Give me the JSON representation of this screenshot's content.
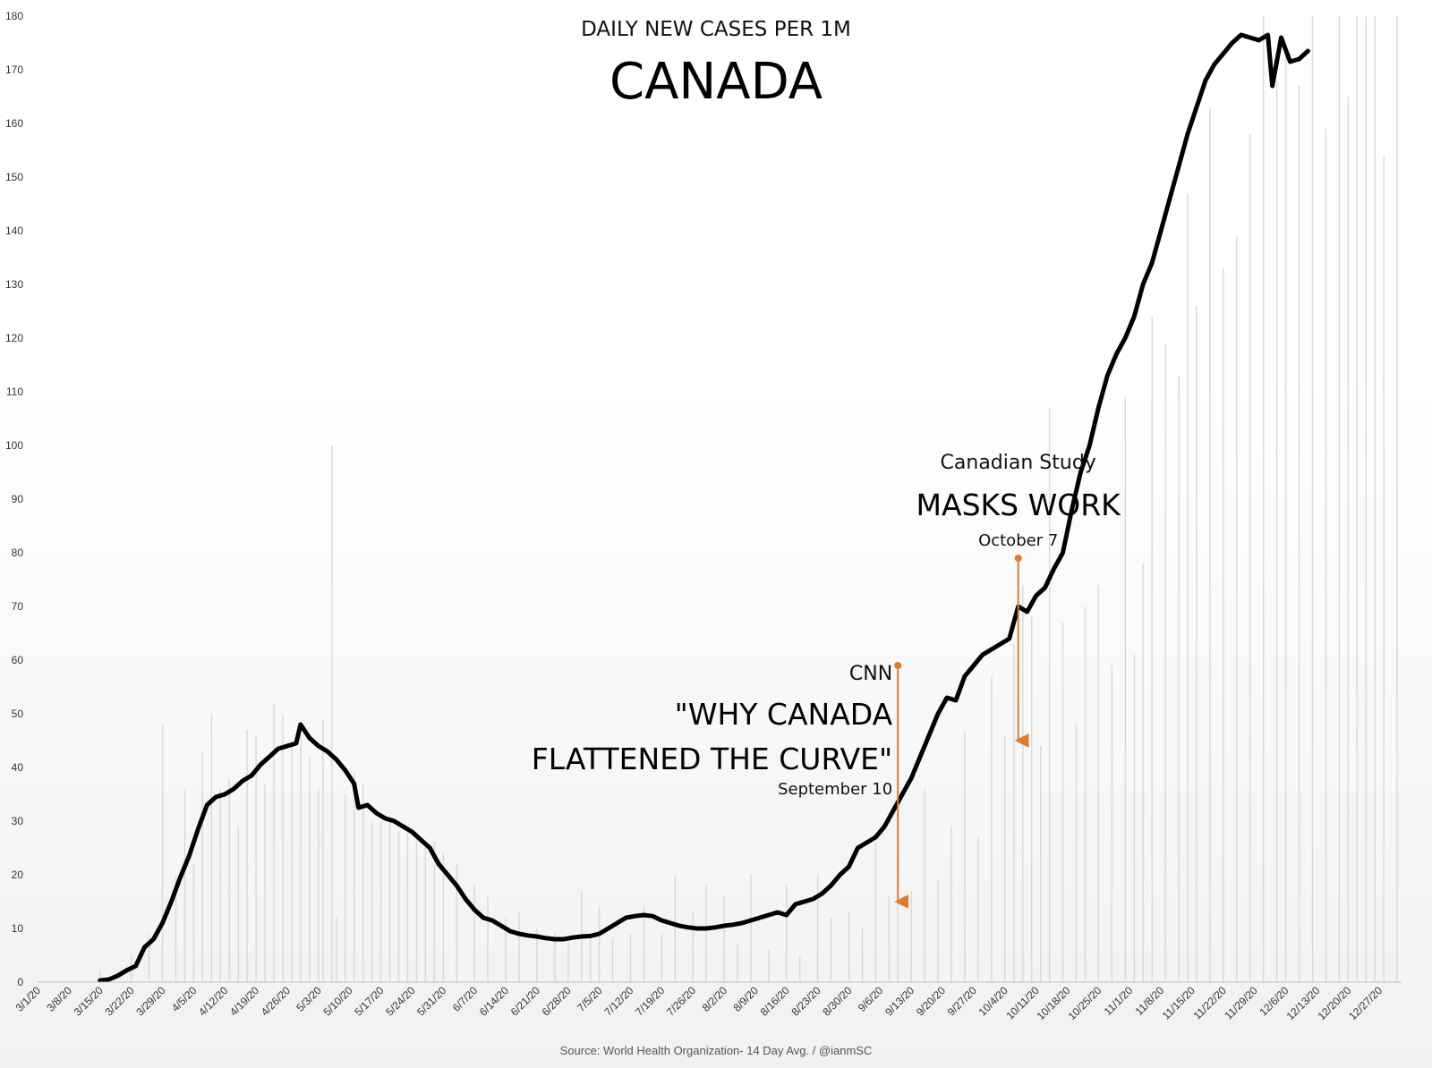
{
  "chart_data": {
    "type": "bar",
    "title": "CANADA",
    "subtitle": "DAILY NEW CASES PER 1M",
    "source": "Source: World Health Organization- 14 Day Avg. / @ianmSC",
    "ylim": [
      0,
      180
    ],
    "y_ticks": [
      "0",
      "10",
      "20",
      "30",
      "40",
      "50",
      "60",
      "70",
      "80",
      "90",
      "100",
      "110",
      "120",
      "130",
      "140",
      "150",
      "160",
      "170",
      "180"
    ],
    "x_tick_labels": [
      "3/1/20",
      "3/8/20",
      "3/15/20",
      "3/22/20",
      "3/29/20",
      "4/5/20",
      "4/12/20",
      "4/19/20",
      "4/26/20",
      "5/3/20",
      "5/10/20",
      "5/17/20",
      "5/24/20",
      "5/31/20",
      "6/7/20",
      "6/14/20",
      "6/21/20",
      "6/28/20",
      "7/5/20",
      "7/12/20",
      "7/19/20",
      "7/26/20",
      "8/2/20",
      "8/9/20",
      "8/16/20",
      "8/23/20",
      "8/30/20",
      "9/6/20",
      "9/13/20",
      "9/20/20",
      "9/27/20",
      "10/4/20",
      "10/11/20",
      "10/18/20",
      "10/25/20",
      "11/1/20",
      "11/8/20",
      "11/15/20",
      "11/22/20",
      "11/29/20",
      "12/6/20",
      "12/13/20",
      "12/20/20",
      "12/27/20"
    ],
    "x_range": [
      "3/1/20",
      "1/1/21"
    ],
    "grid": false,
    "legend": "none",
    "series": [
      {
        "type": "bar",
        "color": "#d9d9d9",
        "points": [
          [
            "3/15/20",
            2
          ],
          [
            "3/22/20",
            5
          ],
          [
            "3/26/20",
            9
          ],
          [
            "3/29/20",
            48
          ],
          [
            "4/1/20",
            20
          ],
          [
            "4/3/20",
            36
          ],
          [
            "4/5/20",
            22
          ],
          [
            "4/7/20",
            43
          ],
          [
            "4/9/20",
            50
          ],
          [
            "4/11/20",
            36
          ],
          [
            "4/13/20",
            38
          ],
          [
            "4/15/20",
            29
          ],
          [
            "4/17/20",
            47
          ],
          [
            "4/19/20",
            46
          ],
          [
            "4/21/20",
            37
          ],
          [
            "4/23/20",
            52
          ],
          [
            "4/25/20",
            50
          ],
          [
            "4/27/20",
            44
          ],
          [
            "4/29/20",
            46
          ],
          [
            "5/1/20",
            42
          ],
          [
            "5/3/20",
            36
          ],
          [
            "5/4/20",
            49
          ],
          [
            "5/6/20",
            100
          ],
          [
            "5/7/20",
            12
          ],
          [
            "5/9/20",
            35
          ],
          [
            "5/11/20",
            39
          ],
          [
            "5/13/20",
            37
          ],
          [
            "5/15/20",
            30
          ],
          [
            "5/17/20",
            30
          ],
          [
            "5/19/20",
            31
          ],
          [
            "5/21/20",
            28
          ],
          [
            "5/23/20",
            29
          ],
          [
            "5/25/20",
            27
          ],
          [
            "5/27/20",
            25
          ],
          [
            "5/29/20",
            26
          ],
          [
            "5/31/20",
            24
          ],
          [
            "6/3/20",
            22
          ],
          [
            "6/7/20",
            18
          ],
          [
            "6/10/20",
            16
          ],
          [
            "6/14/20",
            12
          ],
          [
            "6/17/20",
            13
          ],
          [
            "6/21/20",
            10
          ],
          [
            "6/25/20",
            9
          ],
          [
            "6/28/20",
            8
          ],
          [
            "7/1/20",
            17
          ],
          [
            "7/3/20",
            9
          ],
          [
            "7/5/20",
            14
          ],
          [
            "7/8/20",
            8
          ],
          [
            "7/12/20",
            9
          ],
          [
            "7/15/20",
            14
          ],
          [
            "7/19/20",
            9
          ],
          [
            "7/22/20",
            20
          ],
          [
            "7/26/20",
            13
          ],
          [
            "7/29/20",
            18
          ],
          [
            "8/2/20",
            16
          ],
          [
            "8/5/20",
            7
          ],
          [
            "8/8/20",
            20
          ],
          [
            "8/12/20",
            6
          ],
          [
            "8/16/20",
            18
          ],
          [
            "8/19/20",
            5
          ],
          [
            "8/23/20",
            20
          ],
          [
            "8/26/20",
            12
          ],
          [
            "8/30/20",
            13
          ],
          [
            "9/2/20",
            10
          ],
          [
            "9/5/20",
            26
          ],
          [
            "9/8/20",
            16
          ],
          [
            "9/10/20",
            42
          ],
          [
            "9/13/20",
            17
          ],
          [
            "9/16/20",
            36
          ],
          [
            "9/19/20",
            19
          ],
          [
            "9/22/20",
            29
          ],
          [
            "9/25/20",
            47
          ],
          [
            "9/28/20",
            27
          ],
          [
            "10/1/20",
            57
          ],
          [
            "10/4/20",
            46
          ],
          [
            "10/6/20",
            63
          ],
          [
            "10/8/20",
            74
          ],
          [
            "10/10/20",
            68
          ],
          [
            "10/12/20",
            44
          ],
          [
            "10/14/20",
            107
          ],
          [
            "10/17/20",
            67
          ],
          [
            "10/20/20",
            48
          ],
          [
            "10/22/20",
            70
          ],
          [
            "10/25/20",
            74
          ],
          [
            "10/28/20",
            59
          ],
          [
            "10/31/20",
            109
          ],
          [
            "11/2/20",
            61
          ],
          [
            "11/4/20",
            78
          ],
          [
            "11/6/20",
            124
          ],
          [
            "11/9/20",
            119
          ],
          [
            "11/12/20",
            113
          ],
          [
            "11/14/20",
            147
          ],
          [
            "11/16/20",
            126
          ],
          [
            "11/19/20",
            163
          ],
          [
            "11/22/20",
            133
          ],
          [
            "11/25/20",
            139
          ],
          [
            "11/28/20",
            158
          ],
          [
            "12/1/20",
            180
          ],
          [
            "12/4/20",
            168
          ],
          [
            "12/6/20",
            173
          ],
          [
            "12/9/20",
            167
          ],
          [
            "12/12/20",
            180
          ],
          [
            "12/15/20",
            159
          ],
          [
            "12/18/20",
            180
          ],
          [
            "12/20/20",
            165
          ],
          [
            "12/22/20",
            180
          ],
          [
            "12/24/20",
            180
          ],
          [
            "12/26/20",
            180
          ],
          [
            "12/28/20",
            154
          ],
          [
            "12/31/20",
            180
          ]
        ]
      },
      {
        "type": "line",
        "color": "#000000",
        "points": [
          [
            "3/15/20",
            0.3
          ],
          [
            "3/17/20",
            0.5
          ],
          [
            "3/19/20",
            1.2
          ],
          [
            "3/21/20",
            2.2
          ],
          [
            "3/23/20",
            3.0
          ],
          [
            "3/25/20",
            6.5
          ],
          [
            "3/27/20",
            8.0
          ],
          [
            "3/29/20",
            11.0
          ],
          [
            "3/31/20",
            15.0
          ],
          [
            "4/2/20",
            19.5
          ],
          [
            "4/4/20",
            23.5
          ],
          [
            "4/6/20",
            28.5
          ],
          [
            "4/8/20",
            33.0
          ],
          [
            "4/10/20",
            34.5
          ],
          [
            "4/12/20",
            35.0
          ],
          [
            "4/14/20",
            36.0
          ],
          [
            "4/16/20",
            37.5
          ],
          [
            "4/18/20",
            38.5
          ],
          [
            "4/20/20",
            40.5
          ],
          [
            "4/22/20",
            42.0
          ],
          [
            "4/24/20",
            43.5
          ],
          [
            "4/26/20",
            44.0
          ],
          [
            "4/28/20",
            44.5
          ],
          [
            "4/29/20",
            48.0
          ],
          [
            "5/1/20",
            45.5
          ],
          [
            "5/3/20",
            44.0
          ],
          [
            "5/5/20",
            43.0
          ],
          [
            "5/7/20",
            41.5
          ],
          [
            "5/9/20",
            39.5
          ],
          [
            "5/11/20",
            37.0
          ],
          [
            "5/12/20",
            32.5
          ],
          [
            "5/14/20",
            33.0
          ],
          [
            "5/16/20",
            31.5
          ],
          [
            "5/18/20",
            30.5
          ],
          [
            "5/20/20",
            30.0
          ],
          [
            "5/22/20",
            29.0
          ],
          [
            "5/24/20",
            28.0
          ],
          [
            "5/26/20",
            26.5
          ],
          [
            "5/28/20",
            25.0
          ],
          [
            "5/30/20",
            22.0
          ],
          [
            "6/1/20",
            20.0
          ],
          [
            "6/3/20",
            18.0
          ],
          [
            "6/5/20",
            15.5
          ],
          [
            "6/7/20",
            13.5
          ],
          [
            "6/9/20",
            12.0
          ],
          [
            "6/11/20",
            11.5
          ],
          [
            "6/13/20",
            10.5
          ],
          [
            "6/15/20",
            9.5
          ],
          [
            "6/17/20",
            9.0
          ],
          [
            "6/19/20",
            8.7
          ],
          [
            "6/21/20",
            8.5
          ],
          [
            "6/23/20",
            8.2
          ],
          [
            "6/25/20",
            8.0
          ],
          [
            "6/27/20",
            8.0
          ],
          [
            "6/29/20",
            8.3
          ],
          [
            "7/1/20",
            8.5
          ],
          [
            "7/3/20",
            8.6
          ],
          [
            "7/5/20",
            9.0
          ],
          [
            "7/7/20",
            10.0
          ],
          [
            "7/9/20",
            11.0
          ],
          [
            "7/11/20",
            12.0
          ],
          [
            "7/13/20",
            12.3
          ],
          [
            "7/15/20",
            12.5
          ],
          [
            "7/17/20",
            12.3
          ],
          [
            "7/19/20",
            11.5
          ],
          [
            "7/21/20",
            11.0
          ],
          [
            "7/23/20",
            10.5
          ],
          [
            "7/25/20",
            10.2
          ],
          [
            "7/27/20",
            10.0
          ],
          [
            "7/29/20",
            10.0
          ],
          [
            "7/31/20",
            10.2
          ],
          [
            "8/2/20",
            10.5
          ],
          [
            "8/4/20",
            10.7
          ],
          [
            "8/6/20",
            11.0
          ],
          [
            "8/8/20",
            11.5
          ],
          [
            "8/10/20",
            12.0
          ],
          [
            "8/12/20",
            12.5
          ],
          [
            "8/14/20",
            13.0
          ],
          [
            "8/16/20",
            12.5
          ],
          [
            "8/18/20",
            14.5
          ],
          [
            "8/20/20",
            15.0
          ],
          [
            "8/22/20",
            15.5
          ],
          [
            "8/24/20",
            16.5
          ],
          [
            "8/26/20",
            18.0
          ],
          [
            "8/28/20",
            20.0
          ],
          [
            "8/30/20",
            21.5
          ],
          [
            "9/1/20",
            25.0
          ],
          [
            "9/3/20",
            26.0
          ],
          [
            "9/5/20",
            27.0
          ],
          [
            "9/7/20",
            29.0
          ],
          [
            "9/9/20",
            32.0
          ],
          [
            "9/11/20",
            35.0
          ],
          [
            "9/13/20",
            38.0
          ],
          [
            "9/15/20",
            42.0
          ],
          [
            "9/17/20",
            46.0
          ],
          [
            "9/19/20",
            50.0
          ],
          [
            "9/21/20",
            53.0
          ],
          [
            "9/23/20",
            52.5
          ],
          [
            "9/25/20",
            57.0
          ],
          [
            "9/27/20",
            59.0
          ],
          [
            "9/29/20",
            61.0
          ],
          [
            "10/1/20",
            62.0
          ],
          [
            "10/3/20",
            63.0
          ],
          [
            "10/5/20",
            64.0
          ],
          [
            "10/7/20",
            70.0
          ],
          [
            "10/9/20",
            69.0
          ],
          [
            "10/11/20",
            72.0
          ],
          [
            "10/13/20",
            73.5
          ],
          [
            "10/15/20",
            77.0
          ],
          [
            "10/17/20",
            80.0
          ],
          [
            "10/19/20",
            88.0
          ],
          [
            "10/21/20",
            95.0
          ],
          [
            "10/23/20",
            100.0
          ],
          [
            "10/25/20",
            107.0
          ],
          [
            "10/27/20",
            113.0
          ],
          [
            "10/29/20",
            117.0
          ],
          [
            "10/31/20",
            120.0
          ],
          [
            "11/2/20",
            124.0
          ],
          [
            "11/4/20",
            130.0
          ],
          [
            "11/6/20",
            134.0
          ],
          [
            "11/8/20",
            140.0
          ],
          [
            "11/10/20",
            146.0
          ],
          [
            "11/12/20",
            152.0
          ],
          [
            "11/14/20",
            158.0
          ],
          [
            "11/16/20",
            163.0
          ],
          [
            "11/18/20",
            168.0
          ],
          [
            "11/20/20",
            171.0
          ],
          [
            "11/22/20",
            173.0
          ],
          [
            "11/24/20",
            175.0
          ],
          [
            "11/26/20",
            176.5
          ],
          [
            "11/28/20",
            176.0
          ],
          [
            "11/30/20",
            175.5
          ],
          [
            "12/2/20",
            176.5
          ],
          [
            "12/3/20",
            167.0
          ],
          [
            "12/5/20",
            176.0
          ],
          [
            "12/7/20",
            171.5
          ],
          [
            "12/9/20",
            172.0
          ],
          [
            "12/11/20",
            173.5
          ]
        ]
      }
    ],
    "annotations": [
      {
        "color": "#e07b32",
        "small": "CNN",
        "big_lines": [
          "\"WHY CANADA",
          "FLATTENED THE CURVE\""
        ],
        "date": "September 10",
        "arrow_x": "9/10/20",
        "arrow_from_y": 59,
        "arrow_to_y": 14
      },
      {
        "color": "#e07b32",
        "small": "Canadian Study",
        "big_lines": [
          "MASKS WORK"
        ],
        "date": "October 7",
        "arrow_x": "10/7/20",
        "arrow_from_y": 79,
        "arrow_to_y": 44
      }
    ]
  }
}
